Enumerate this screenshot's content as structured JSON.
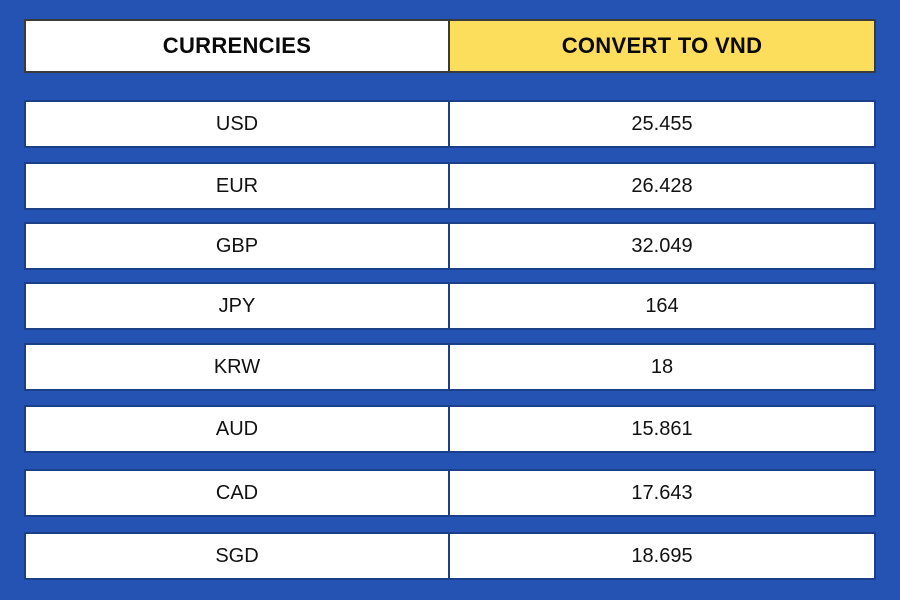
{
  "header": {
    "currency_label": "CURRENCIES",
    "convert_label": "CONVERT TO VND"
  },
  "colors": {
    "background": "#2453b3",
    "header_highlight": "#fcdd5c"
  },
  "rows": [
    {
      "currency": "USD",
      "value": "25.455"
    },
    {
      "currency": "EUR",
      "value": "26.428"
    },
    {
      "currency": "GBP",
      "value": "32.049"
    },
    {
      "currency": "JPY",
      "value": "164"
    },
    {
      "currency": "KRW",
      "value": "18"
    },
    {
      "currency": "AUD",
      "value": "15.861"
    },
    {
      "currency": "CAD",
      "value": "17.643"
    },
    {
      "currency": "SGD",
      "value": "18.695"
    }
  ]
}
